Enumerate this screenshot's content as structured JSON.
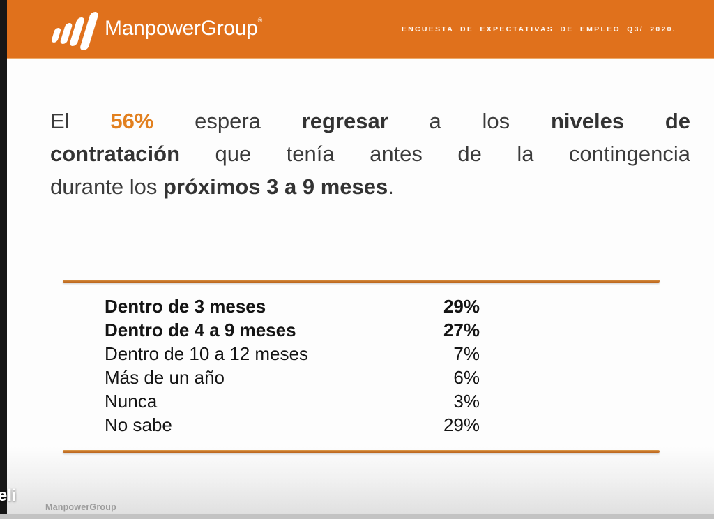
{
  "header": {
    "logo_text": "ManpowerGroup",
    "registered_mark": "®",
    "survey_title": "ENCUESTA DE EXPECTATIVAS DE EMPLEO Q3/ 2020."
  },
  "headline": {
    "lines": [
      {
        "segments": [
          {
            "t": "El ",
            "style": "normal"
          },
          {
            "t": "56%",
            "style": "orange-bold"
          },
          {
            "t": " espera ",
            "style": "normal"
          },
          {
            "t": "regresar",
            "style": "bold"
          },
          {
            "t": " a los ",
            "style": "normal"
          },
          {
            "t": "niveles de",
            "style": "bold"
          }
        ]
      },
      {
        "segments": [
          {
            "t": "contratación",
            "style": "bold"
          },
          {
            "t": " que tenía antes de la contingencia",
            "style": "normal"
          }
        ]
      },
      {
        "segments": [
          {
            "t": "durante los ",
            "style": "normal"
          },
          {
            "t": "próximos 3 a 9 meses",
            "style": "bold"
          },
          {
            "t": ".",
            "style": "normal"
          }
        ]
      }
    ]
  },
  "table": {
    "rows": [
      {
        "label": "Dentro de 3 meses",
        "value": "29%",
        "bold": true
      },
      {
        "label": "Dentro de 4 a 9 meses",
        "value": "27%",
        "bold": true
      },
      {
        "label": "Dentro de 10 a 12 meses",
        "value": "7%",
        "bold": false
      },
      {
        "label": "Más de un año",
        "value": "6%",
        "bold": false
      },
      {
        "label": "Nunca",
        "value": "3%",
        "bold": false
      },
      {
        "label": "No sabe",
        "value": "29%",
        "bold": false
      }
    ]
  },
  "chart_data": {
    "type": "table",
    "title": "El 56% espera regresar a los niveles de contratación que tenía antes de la contingencia durante los próximos 3 a 9 meses.",
    "categories": [
      "Dentro de 3 meses",
      "Dentro de 4 a 9 meses",
      "Dentro de 10 a 12 meses",
      "Más de un año",
      "Nunca",
      "No sabe"
    ],
    "values": [
      29,
      27,
      7,
      6,
      3,
      29
    ],
    "unit": "%",
    "highlight_value": "56%",
    "emphasized_rows": [
      0,
      1
    ]
  },
  "footer": {
    "logo_text": "ManpowerGroup"
  },
  "overlay": {
    "partial_text": "eli"
  },
  "colors": {
    "header_orange": "#E0711C",
    "accent_orange": "#E2801F",
    "rule_orange": "#C8762A",
    "heading_text": "#3B3B3B",
    "table_text": "#141414",
    "footer_text": "#9B9B9B"
  }
}
